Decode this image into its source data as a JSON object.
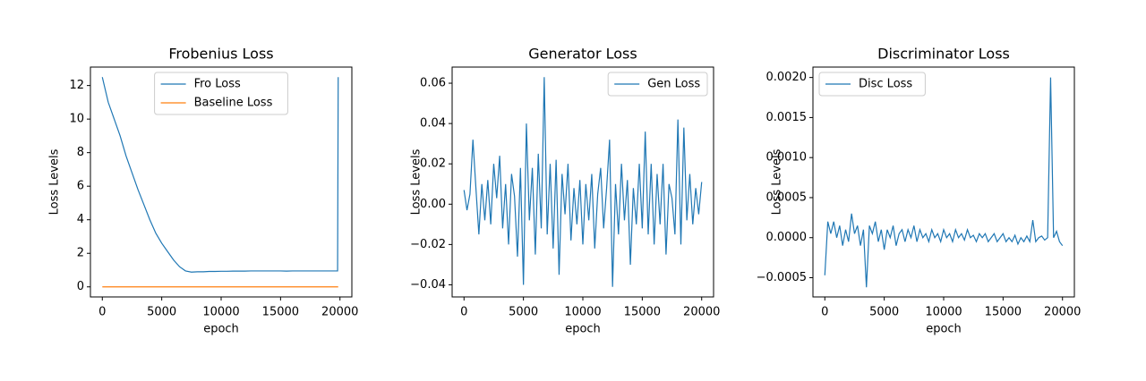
{
  "chart_data": [
    {
      "type": "line",
      "title": "Frobenius Loss",
      "xlabel": "epoch",
      "ylabel": "Loss Levels",
      "x": [
        0,
        500,
        1000,
        1500,
        2000,
        2500,
        3000,
        3500,
        4000,
        4500,
        5000,
        5500,
        6000,
        6500,
        7000,
        7500,
        8000,
        8500,
        9000,
        9500,
        10000,
        10500,
        11000,
        11500,
        12000,
        12500,
        13000,
        13500,
        14000,
        14500,
        15000,
        15500,
        16000,
        16500,
        17000,
        17500,
        18000,
        18500,
        19000,
        19500,
        19800,
        19850
      ],
      "series": [
        {
          "name": "Fro Loss",
          "color": "#1f77b4",
          "values": [
            12.5,
            11.0,
            10.0,
            9.0,
            7.8,
            6.8,
            5.8,
            4.9,
            4.0,
            3.2,
            2.6,
            2.1,
            1.6,
            1.2,
            0.95,
            0.88,
            0.9,
            0.9,
            0.92,
            0.92,
            0.93,
            0.93,
            0.94,
            0.94,
            0.94,
            0.95,
            0.95,
            0.95,
            0.95,
            0.95,
            0.95,
            0.94,
            0.95,
            0.95,
            0.95,
            0.95,
            0.95,
            0.95,
            0.95,
            0.95,
            0.95,
            12.5
          ]
        },
        {
          "name": "Baseline Loss",
          "color": "#ff7f0e",
          "values": [
            0,
            0,
            0,
            0,
            0,
            0,
            0,
            0,
            0,
            0,
            0,
            0,
            0,
            0,
            0,
            0,
            0,
            0,
            0,
            0,
            0,
            0,
            0,
            0,
            0,
            0,
            0,
            0,
            0,
            0,
            0,
            0,
            0,
            0,
            0,
            0,
            0,
            0,
            0,
            0,
            0,
            0
          ]
        }
      ],
      "xlim": [
        -1000,
        21000
      ],
      "xticks": [
        0,
        5000,
        10000,
        15000,
        20000
      ],
      "ylim": [
        -0.6,
        13.1
      ],
      "yticks": [
        0,
        2,
        4,
        6,
        8,
        10,
        12
      ],
      "legend": "upper center"
    },
    {
      "type": "line",
      "title": "Generator Loss",
      "xlabel": "epoch",
      "ylabel": "Loss Levels",
      "x": [
        0,
        250,
        500,
        750,
        1000,
        1250,
        1500,
        1750,
        2000,
        2250,
        2500,
        2750,
        3000,
        3250,
        3500,
        3750,
        4000,
        4250,
        4500,
        4750,
        5000,
        5250,
        5500,
        5750,
        6000,
        6250,
        6500,
        6750,
        7000,
        7250,
        7500,
        7750,
        8000,
        8250,
        8500,
        8750,
        9000,
        9250,
        9500,
        9750,
        10000,
        10250,
        10500,
        10750,
        11000,
        11250,
        11500,
        11750,
        12000,
        12250,
        12500,
        12750,
        13000,
        13250,
        13500,
        13750,
        14000,
        14250,
        14500,
        14750,
        15000,
        15250,
        15500,
        15750,
        16000,
        16250,
        16500,
        16750,
        17000,
        17250,
        17500,
        17750,
        18000,
        18250,
        18500,
        18750,
        19000,
        19250,
        19500,
        19750,
        20000
      ],
      "series": [
        {
          "name": "Gen Loss",
          "color": "#1f77b4",
          "values": [
            0.007,
            -0.003,
            0.005,
            0.032,
            0.008,
            -0.015,
            0.01,
            -0.008,
            0.012,
            -0.01,
            0.02,
            0.003,
            0.024,
            -0.012,
            0.01,
            -0.02,
            0.015,
            0.004,
            -0.026,
            0.018,
            -0.04,
            0.04,
            -0.008,
            0.018,
            -0.025,
            0.025,
            -0.012,
            0.063,
            -0.015,
            0.02,
            -0.022,
            0.022,
            -0.035,
            0.015,
            -0.005,
            0.02,
            -0.018,
            0.008,
            -0.01,
            0.012,
            -0.02,
            0.01,
            -0.008,
            0.015,
            -0.022,
            0.005,
            0.018,
            -0.012,
            0.008,
            0.032,
            -0.041,
            0.01,
            -0.015,
            0.02,
            -0.008,
            0.012,
            -0.03,
            0.008,
            -0.01,
            0.02,
            -0.012,
            0.036,
            -0.015,
            0.02,
            -0.02,
            0.015,
            -0.01,
            0.02,
            -0.025,
            0.01,
            0.003,
            -0.015,
            0.042,
            -0.02,
            0.038,
            -0.008,
            0.015,
            -0.01,
            0.008,
            -0.005,
            0.011
          ]
        }
      ],
      "xlim": [
        -1000,
        21000
      ],
      "xticks": [
        0,
        5000,
        10000,
        15000,
        20000
      ],
      "ylim": [
        -0.046,
        0.068
      ],
      "yticks": [
        {
          "value": -0.04,
          "label": "−0.04"
        },
        {
          "value": -0.02,
          "label": "−0.02"
        },
        {
          "value": 0,
          "label": "0.00"
        },
        {
          "value": 0.02,
          "label": "0.02"
        },
        {
          "value": 0.04,
          "label": "0.04"
        },
        {
          "value": 0.06,
          "label": "0.06"
        }
      ],
      "legend": "upper right"
    },
    {
      "type": "line",
      "title": "Discriminator Loss",
      "xlabel": "epoch",
      "ylabel": "Loss Levels",
      "x": [
        0,
        250,
        500,
        750,
        1000,
        1250,
        1500,
        1750,
        2000,
        2250,
        2500,
        2750,
        3000,
        3250,
        3500,
        3750,
        4000,
        4250,
        4500,
        4750,
        5000,
        5250,
        5500,
        5750,
        6000,
        6250,
        6500,
        6750,
        7000,
        7250,
        7500,
        7750,
        8000,
        8250,
        8500,
        8750,
        9000,
        9250,
        9500,
        9750,
        10000,
        10250,
        10500,
        10750,
        11000,
        11250,
        11500,
        11750,
        12000,
        12250,
        12500,
        12750,
        13000,
        13250,
        13500,
        13750,
        14000,
        14250,
        14500,
        14750,
        15000,
        15250,
        15500,
        15750,
        16000,
        16250,
        16500,
        16750,
        17000,
        17250,
        17500,
        17750,
        18000,
        18250,
        18500,
        18750,
        19000,
        19250,
        19500,
        19750,
        20000
      ],
      "series": [
        {
          "name": "Disc Loss",
          "color": "#1f77b4",
          "values": [
            -0.00047,
            0.0002,
            5e-05,
            0.0002,
            0.0,
            0.00015,
            -0.0001,
            0.0001,
            -5e-05,
            0.0003,
            5e-05,
            0.00015,
            -0.0001,
            0.0001,
            -0.00062,
            0.00015,
            5e-05,
            0.0002,
            -5e-05,
            0.0001,
            -0.00015,
            0.0001,
            0.0,
            0.00015,
            -0.0001,
            5e-05,
            0.0001,
            -5e-05,
            0.0001,
            0.0,
            0.00015,
            -5e-05,
            0.0001,
            0.0,
            5e-05,
            -5e-05,
            0.0001,
            0.0,
            5e-05,
            -5e-05,
            0.0001,
            0.0,
            5e-05,
            -5e-05,
            0.0001,
            0.0,
            5e-05,
            -3e-05,
            0.0001,
            0.0,
            3e-05,
            -5e-05,
            5e-05,
            0.0,
            5e-05,
            -5e-05,
            0.0,
            5e-05,
            -5e-05,
            0.0,
            5e-05,
            -5e-05,
            0.0,
            -5e-05,
            3e-05,
            -8e-05,
            0.0,
            -5e-05,
            2e-05,
            -5e-05,
            0.00022,
            -5e-05,
            0.0,
            2e-05,
            -3e-05,
            0.0,
            0.002,
            0.0,
            8e-05,
            -5e-05,
            -0.0001
          ]
        }
      ],
      "xlim": [
        -1000,
        21000
      ],
      "xticks": [
        0,
        5000,
        10000,
        15000,
        20000
      ],
      "ylim": [
        -0.00074,
        0.00213
      ],
      "yticks": [
        {
          "value": -0.0005,
          "label": "−0.0005"
        },
        {
          "value": 0,
          "label": "0.0000"
        },
        {
          "value": 0.0005,
          "label": "0.0005"
        },
        {
          "value": 0.001,
          "label": "0.0010"
        },
        {
          "value": 0.0015,
          "label": "0.0015"
        },
        {
          "value": 0.002,
          "label": "0.0020"
        }
      ],
      "legend": "upper left"
    }
  ]
}
